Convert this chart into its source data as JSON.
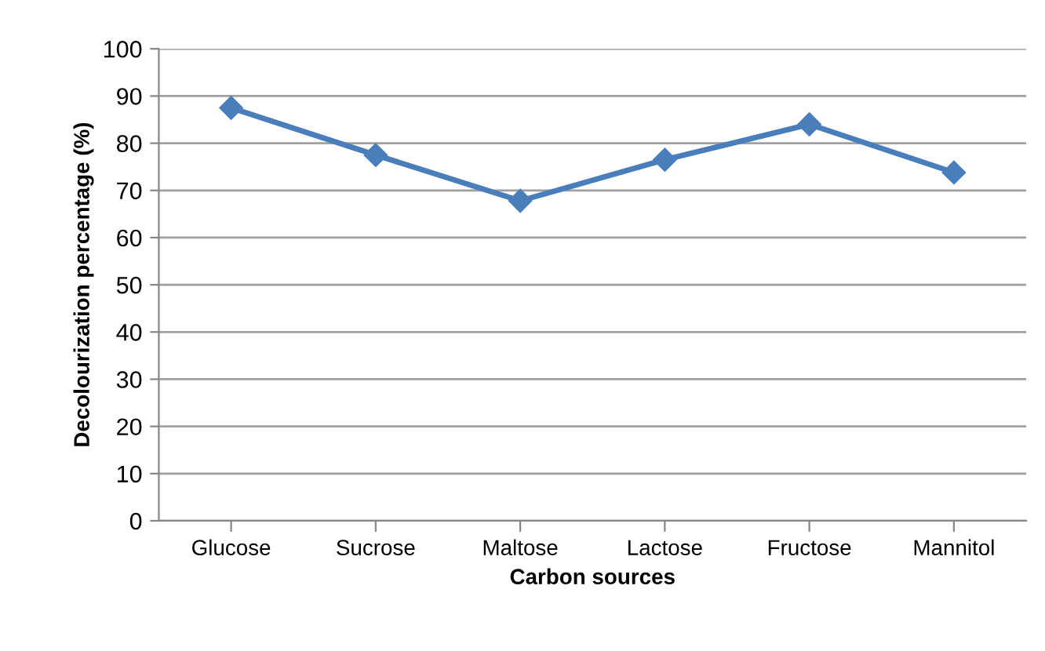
{
  "chart_data": {
    "type": "line",
    "xlabel": "Carbon sources",
    "ylabel": "Decolourization percentage (%)",
    "categories": [
      "Glucose",
      "Sucrose",
      "Maltose",
      "Lactose",
      "Fructose",
      "Mannitol"
    ],
    "series": [
      {
        "color": "#4a7ebb",
        "values": [
          87.5,
          77.5,
          67.8,
          76.5,
          84,
          73.8
        ]
      }
    ],
    "ylim": [
      0,
      100
    ],
    "yticks": [
      0,
      10,
      20,
      30,
      40,
      50,
      60,
      70,
      80,
      90,
      100
    ],
    "grid": "y",
    "marker": "diamond",
    "line_style": "solid",
    "legend": false
  }
}
